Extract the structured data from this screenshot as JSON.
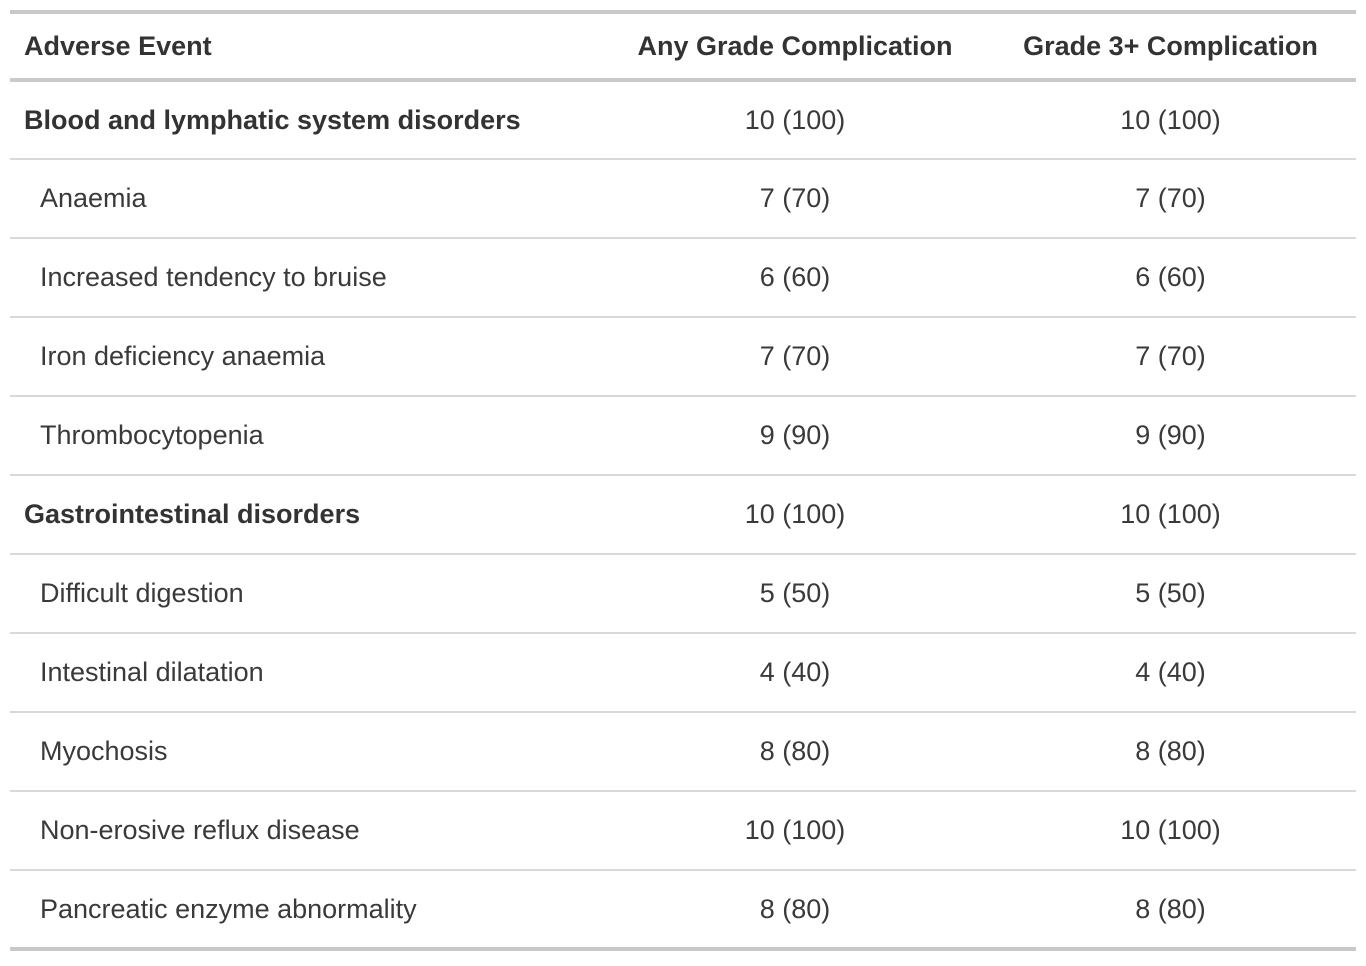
{
  "colors": {
    "background": "#ffffff",
    "border_strong": "#c9c9c9",
    "border_light": "#d9d9d9",
    "header_text": "#333333",
    "body_text": "#3a3a3a"
  },
  "chart_data": {
    "type": "table",
    "columns": [
      "Adverse Event",
      "Any Grade Complication",
      "Grade 3+ Complication"
    ],
    "rows": [
      {
        "adverse_event": "Blood and lymphatic system disorders",
        "any_grade": "10 (100)",
        "grade3plus": "10 (100)",
        "is_category": true
      },
      {
        "adverse_event": "Anaemia",
        "any_grade": "7 (70)",
        "grade3plus": "7 (70)",
        "is_category": false
      },
      {
        "adverse_event": "Increased tendency to bruise",
        "any_grade": "6 (60)",
        "grade3plus": "6 (60)",
        "is_category": false
      },
      {
        "adverse_event": "Iron deficiency anaemia",
        "any_grade": "7 (70)",
        "grade3plus": "7 (70)",
        "is_category": false
      },
      {
        "adverse_event": "Thrombocytopenia",
        "any_grade": "9 (90)",
        "grade3plus": "9 (90)",
        "is_category": false
      },
      {
        "adverse_event": "Gastrointestinal disorders",
        "any_grade": "10 (100)",
        "grade3plus": "10 (100)",
        "is_category": true
      },
      {
        "adverse_event": "Difficult digestion",
        "any_grade": "5 (50)",
        "grade3plus": "5 (50)",
        "is_category": false
      },
      {
        "adverse_event": "Intestinal dilatation",
        "any_grade": "4 (40)",
        "grade3plus": "4 (40)",
        "is_category": false
      },
      {
        "adverse_event": "Myochosis",
        "any_grade": "8 (80)",
        "grade3plus": "8 (80)",
        "is_category": false
      },
      {
        "adverse_event": "Non-erosive reflux disease",
        "any_grade": "10 (100)",
        "grade3plus": "10 (100)",
        "is_category": false
      },
      {
        "adverse_event": "Pancreatic enzyme abnormality",
        "any_grade": "8 (80)",
        "grade3plus": "8 (80)",
        "is_category": false
      }
    ]
  }
}
